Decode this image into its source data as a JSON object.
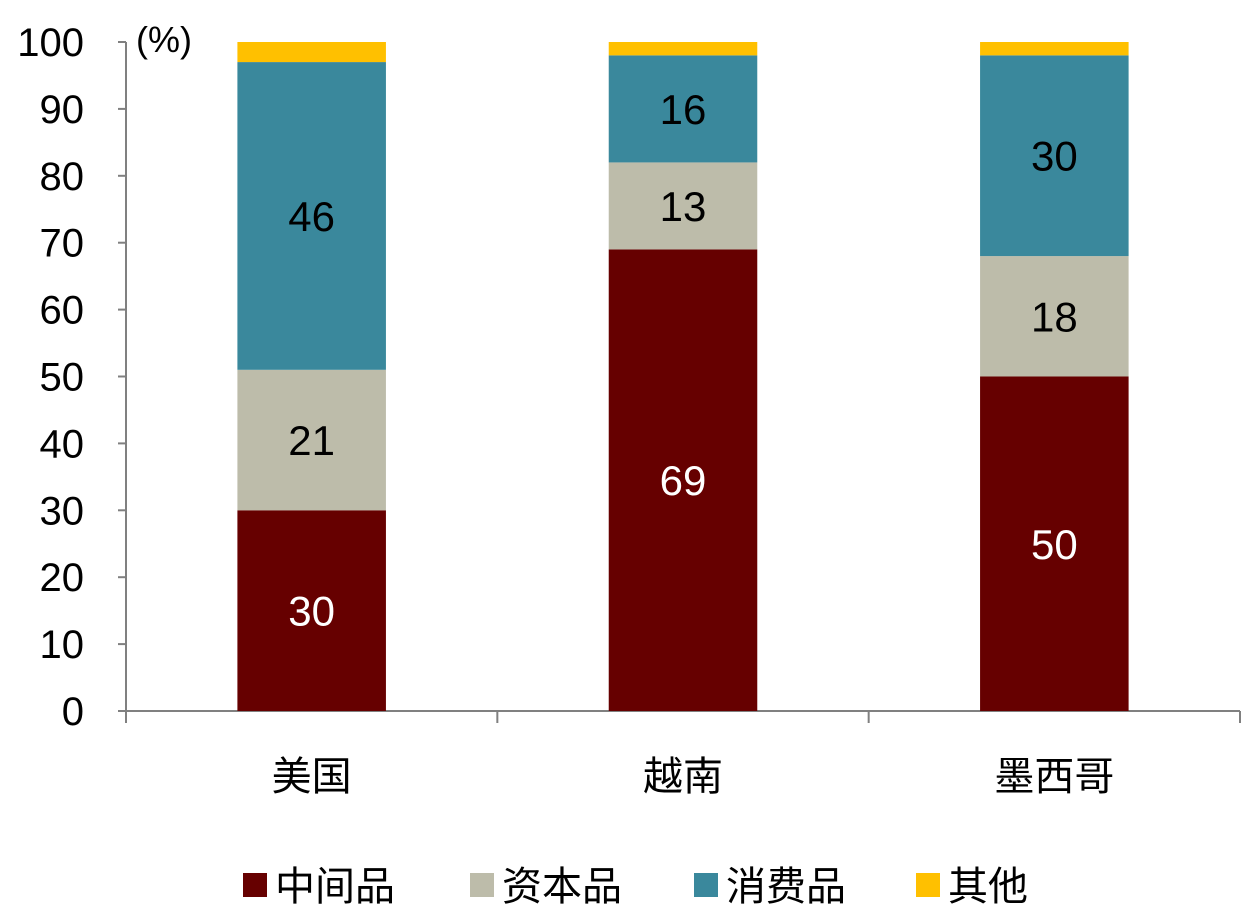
{
  "chart_data": {
    "type": "bar",
    "stacked": true,
    "unit_label": "(%)",
    "categories": [
      "美国",
      "越南",
      "墨西哥"
    ],
    "series": [
      {
        "name": "中间品",
        "color": "#660000",
        "label_color": "#ffffff",
        "values": [
          30,
          69,
          50
        ]
      },
      {
        "name": "资本品",
        "color": "#bdbcaa",
        "label_color": "#000000",
        "values": [
          21,
          13,
          18
        ]
      },
      {
        "name": "消费品",
        "color": "#3a889c",
        "label_color": "#000000",
        "values": [
          46,
          16,
          30
        ]
      },
      {
        "name": "其他",
        "color": "#ffc000",
        "label_color": "#000000",
        "values": [
          4,
          2,
          2
        ],
        "show_labels": false
      }
    ],
    "ylim": [
      0,
      100
    ],
    "yticks": [
      0,
      10,
      20,
      30,
      40,
      50,
      60,
      70,
      80,
      90,
      100
    ],
    "grid": false,
    "legend": "bottom"
  }
}
